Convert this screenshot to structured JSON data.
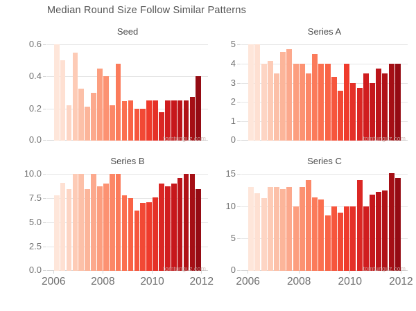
{
  "page_title": "Median Round Size Follow Similar Patterns",
  "watermark": "tomtunguz.com",
  "axis": {
    "x_tick_labels": [
      "2006",
      "2008",
      "2010",
      "2012"
    ]
  },
  "palette": {
    "bar_colors": [
      "#fee6da",
      "#fee0d2",
      "#fdd5c4",
      "#fdcbb6",
      "#fcc0a8",
      "#fcb59a",
      "#fca98d",
      "#fc9e7f",
      "#fc9272",
      "#fc8767",
      "#fb7b5b",
      "#fb7050",
      "#f96346",
      "#f6563d",
      "#f24935",
      "#ef3b2c",
      "#e53128",
      "#db2724",
      "#d01d1f",
      "#c6171c",
      "#bb141a",
      "#b01217",
      "#a50f15",
      "#940b13"
    ]
  },
  "chart_data": [
    {
      "type": "bar",
      "title": "Seed",
      "categories": [
        "2006 Q1",
        "2006 Q2",
        "2006 Q3",
        "2006 Q4",
        "2007 Q1",
        "2007 Q2",
        "2007 Q3",
        "2007 Q4",
        "2008 Q1",
        "2008 Q2",
        "2008 Q3",
        "2008 Q4",
        "2009 Q1",
        "2009 Q2",
        "2009 Q3",
        "2009 Q4",
        "2010 Q1",
        "2010 Q2",
        "2010 Q3",
        "2010 Q4",
        "2011 Q1",
        "2011 Q2",
        "2011 Q3",
        "2011 Q4"
      ],
      "values": [
        0.6,
        0.5,
        0.22,
        0.55,
        0.325,
        0.21,
        0.3,
        0.45,
        0.4,
        0.22,
        0.48,
        0.245,
        0.25,
        0.2,
        0.2,
        0.25,
        0.25,
        0.175,
        0.25,
        0.25,
        0.25,
        0.25,
        0.27,
        0.4
      ],
      "ylim": [
        0,
        0.6
      ],
      "yticks": {
        "labels": [
          "0.0",
          "0.2",
          "0.4",
          "0.6"
        ],
        "values": [
          0,
          0.2,
          0.4,
          0.6
        ]
      },
      "x_range": [
        2006,
        2012
      ],
      "grid": "horizontal",
      "legend": "none"
    },
    {
      "type": "bar",
      "title": "Series A",
      "categories": [
        "2006 Q1",
        "2006 Q2",
        "2006 Q3",
        "2006 Q4",
        "2007 Q1",
        "2007 Q2",
        "2007 Q3",
        "2007 Q4",
        "2008 Q1",
        "2008 Q2",
        "2008 Q3",
        "2008 Q4",
        "2009 Q1",
        "2009 Q2",
        "2009 Q3",
        "2009 Q4",
        "2010 Q1",
        "2010 Q2",
        "2010 Q3",
        "2010 Q4",
        "2011 Q1",
        "2011 Q2",
        "2011 Q3",
        "2011 Q4"
      ],
      "values": [
        5,
        5,
        4,
        4.15,
        3.5,
        4.6,
        4.75,
        4,
        4,
        3.5,
        4.5,
        4,
        4,
        3.3,
        2.6,
        4,
        3,
        2.75,
        3.5,
        3,
        3.75,
        3.5,
        4,
        4
      ],
      "ylim": [
        0,
        5
      ],
      "yticks": {
        "labels": [
          "0",
          "1",
          "2",
          "3",
          "4",
          "5"
        ],
        "values": [
          0,
          1,
          2,
          3,
          4,
          5
        ]
      },
      "x_range": [
        2006,
        2012
      ],
      "grid": "horizontal",
      "legend": "none"
    },
    {
      "type": "bar",
      "title": "Series B",
      "categories": [
        "2006 Q1",
        "2006 Q2",
        "2006 Q3",
        "2006 Q4",
        "2007 Q1",
        "2007 Q2",
        "2007 Q3",
        "2007 Q4",
        "2008 Q1",
        "2008 Q2",
        "2008 Q3",
        "2008 Q4",
        "2009 Q1",
        "2009 Q2",
        "2009 Q3",
        "2009 Q4",
        "2010 Q1",
        "2010 Q2",
        "2010 Q3",
        "2010 Q4",
        "2011 Q1",
        "2011 Q2",
        "2011 Q3",
        "2011 Q4"
      ],
      "values": [
        7.8,
        9.1,
        8.4,
        10,
        10,
        8.4,
        10,
        8.7,
        9,
        10,
        10,
        7.8,
        7.5,
        6.2,
        7,
        7.1,
        7.6,
        9,
        8.7,
        9,
        9.6,
        10,
        10,
        8.4
      ],
      "ylim": [
        0,
        10
      ],
      "yticks": {
        "labels": [
          "0.0",
          "2.5",
          "5.0",
          "7.5",
          "10.0"
        ],
        "values": [
          0,
          2.5,
          5,
          7.5,
          10
        ]
      },
      "x_range": [
        2006,
        2012
      ],
      "grid": "horizontal",
      "legend": "none"
    },
    {
      "type": "bar",
      "title": "Series C",
      "categories": [
        "2006 Q1",
        "2006 Q2",
        "2006 Q3",
        "2006 Q4",
        "2007 Q1",
        "2007 Q2",
        "2007 Q3",
        "2007 Q4",
        "2008 Q1",
        "2008 Q2",
        "2008 Q3",
        "2008 Q4",
        "2009 Q1",
        "2009 Q2",
        "2009 Q3",
        "2009 Q4",
        "2010 Q1",
        "2010 Q2",
        "2010 Q3",
        "2010 Q4",
        "2011 Q1",
        "2011 Q2",
        "2011 Q3",
        "2011 Q4"
      ],
      "values": [
        13,
        12,
        11.2,
        13,
        13,
        12.6,
        13,
        10,
        13,
        14,
        11.4,
        11,
        8.6,
        10,
        9,
        10,
        10,
        14,
        10,
        11.8,
        12.2,
        12.4,
        15.1,
        14.4
      ],
      "ylim": [
        0,
        15
      ],
      "yticks": {
        "labels": [
          "0",
          "5",
          "10",
          "15"
        ],
        "values": [
          0,
          5,
          10,
          15
        ]
      },
      "x_range": [
        2006,
        2012
      ],
      "grid": "horizontal",
      "legend": "none"
    }
  ]
}
